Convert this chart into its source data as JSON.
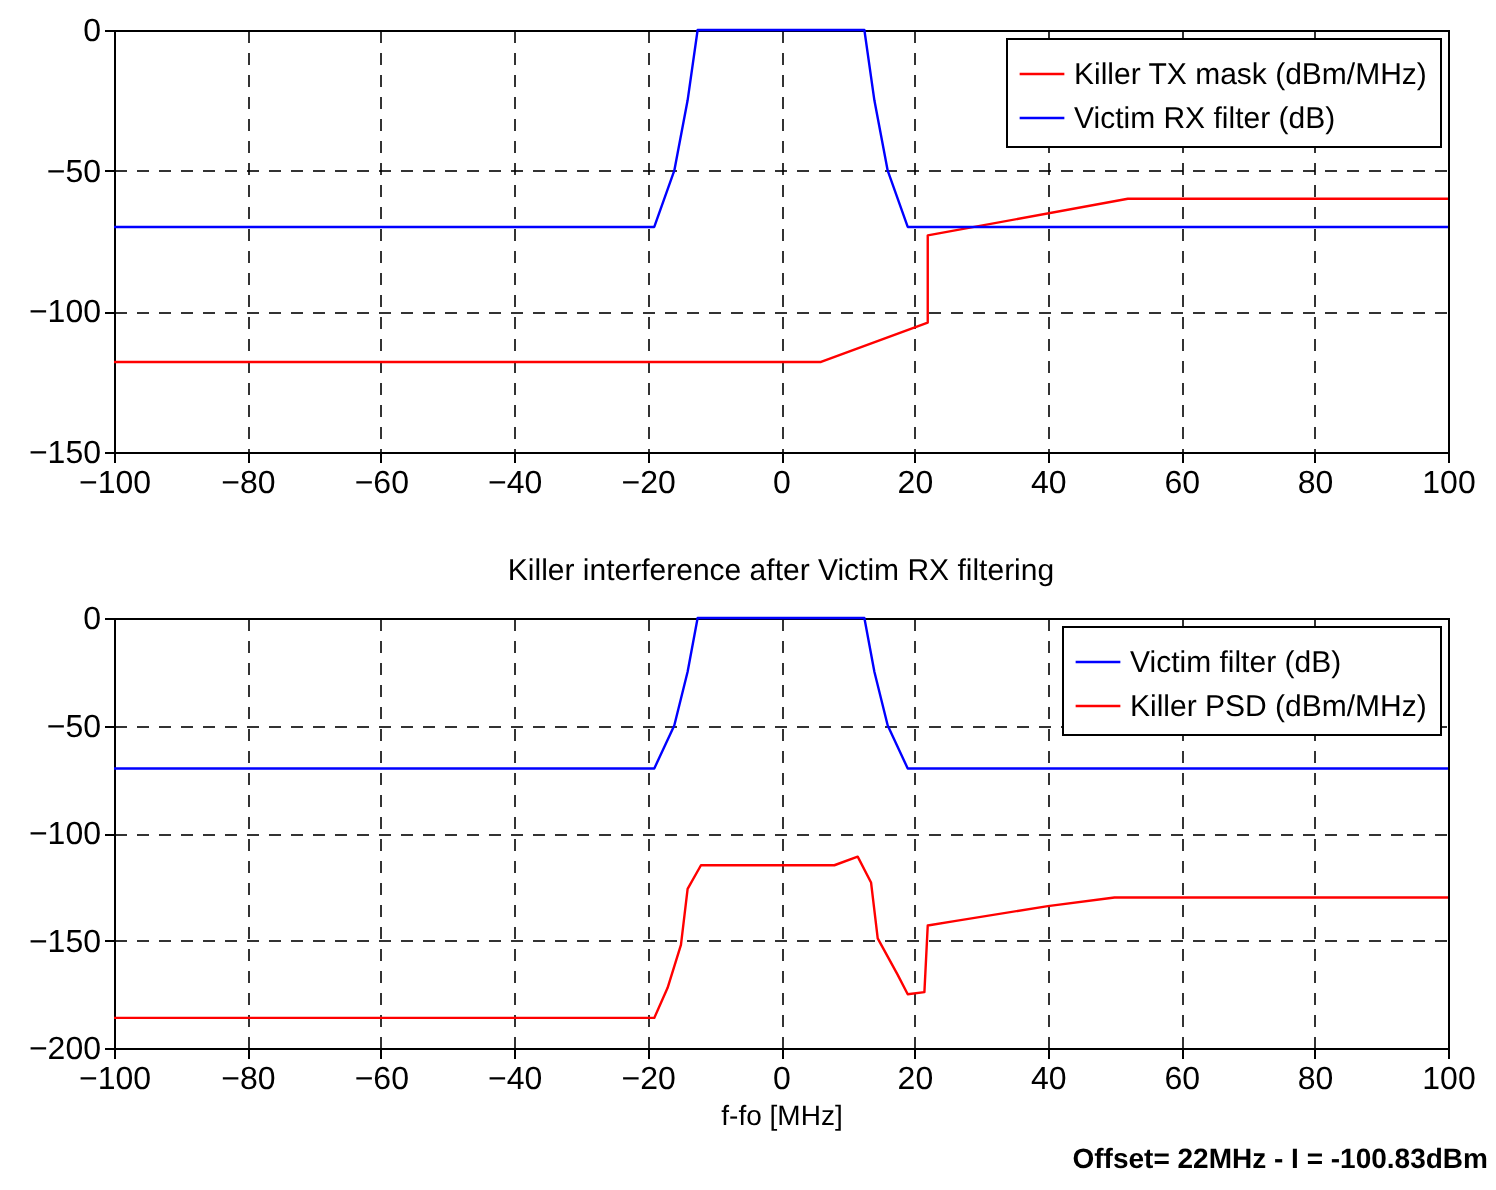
{
  "chart_data": [
    {
      "type": "line",
      "xlim": [
        -100,
        100
      ],
      "xticks": [
        -100,
        -80,
        -60,
        -40,
        -20,
        0,
        20,
        40,
        60,
        80,
        100
      ],
      "ylim": [
        -150,
        0
      ],
      "yticks": [
        -150,
        -100,
        -50,
        0
      ],
      "grid": true,
      "legend": "top right",
      "series": [
        {
          "name": "Killer TX mask (dBm/MHz)",
          "color": "#ff0000",
          "x": [
            -100,
            6,
            22,
            22,
            52,
            100
          ],
          "values": [
            -118,
            -118,
            -104,
            -73,
            -60,
            -60
          ]
        },
        {
          "name": "Victim RX filter (dB)",
          "color": "#0000ff",
          "x": [
            -100,
            -19,
            -16,
            -14,
            -12.5,
            12.5,
            14,
            16,
            19,
            100
          ],
          "values": [
            -70,
            -70,
            -50,
            -25,
            0,
            0,
            -25,
            -50,
            -70,
            -70
          ]
        }
      ]
    },
    {
      "type": "line",
      "title": "Killer interference after Victim RX filtering",
      "xlabel": "f-fo [MHz]",
      "xlim": [
        -100,
        100
      ],
      "xticks": [
        -100,
        -80,
        -60,
        -40,
        -20,
        0,
        20,
        40,
        60,
        80,
        100
      ],
      "ylim": [
        -200,
        0
      ],
      "yticks": [
        -200,
        -150,
        -100,
        -50,
        0
      ],
      "grid": true,
      "legend": "top right",
      "annotations": [
        "Offset= 22MHz - I = -100.83dBm"
      ],
      "series": [
        {
          "name": "Victim filter (dB)",
          "color": "#0000ff",
          "x": [
            -100,
            -19,
            -16,
            -14,
            -12.5,
            12.5,
            14,
            16,
            19,
            100
          ],
          "values": [
            -70,
            -70,
            -50,
            -25,
            0,
            0,
            -25,
            -50,
            -70,
            -70
          ]
        },
        {
          "name": "Killer PSD (dBm/MHz)",
          "color": "#ff0000",
          "x": [
            -100,
            -19,
            -17,
            -15,
            -14,
            -12,
            8,
            11.5,
            13.5,
            14.5,
            17.5,
            19,
            21.5,
            22,
            26,
            40,
            50,
            100
          ],
          "values": [
            -186,
            -186,
            -172,
            -152,
            -126,
            -115,
            -115,
            -111,
            -123,
            -149,
            -166,
            -175,
            -174,
            -143,
            -141,
            -134,
            -130,
            -130
          ]
        }
      ]
    }
  ]
}
